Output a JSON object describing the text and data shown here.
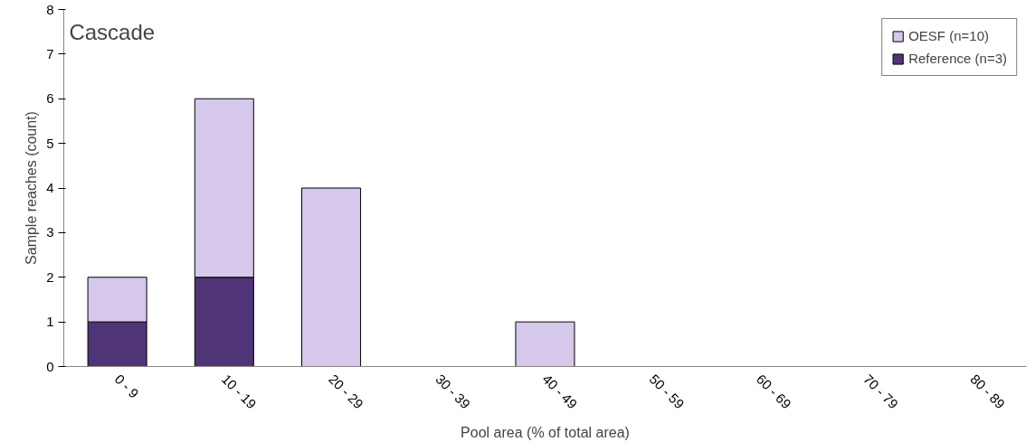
{
  "chart_data": {
    "type": "bar",
    "title": "Cascade",
    "xlabel": "Pool area (% of total area)",
    "ylabel": "Sample reaches (count)",
    "categories": [
      "0 - 9",
      "10 - 19",
      "20 - 29",
      "30 - 39",
      "40 - 49",
      "50 - 59",
      "60 - 69",
      "70 - 79",
      "80 - 89"
    ],
    "stacked": true,
    "series": [
      {
        "name": "Reference (n=3)",
        "color": "#4f3477",
        "values": [
          1,
          2,
          0,
          0,
          0,
          0,
          0,
          0,
          0
        ]
      },
      {
        "name": "OESF (n=10)",
        "color": "#d6c8ea",
        "values": [
          1,
          4,
          4,
          0,
          1,
          0,
          0,
          0,
          0
        ]
      }
    ],
    "ylim": [
      0,
      8
    ],
    "yticks": [
      0,
      1,
      2,
      3,
      4,
      5,
      6,
      7,
      8
    ],
    "grid": false,
    "legend": "top right"
  }
}
